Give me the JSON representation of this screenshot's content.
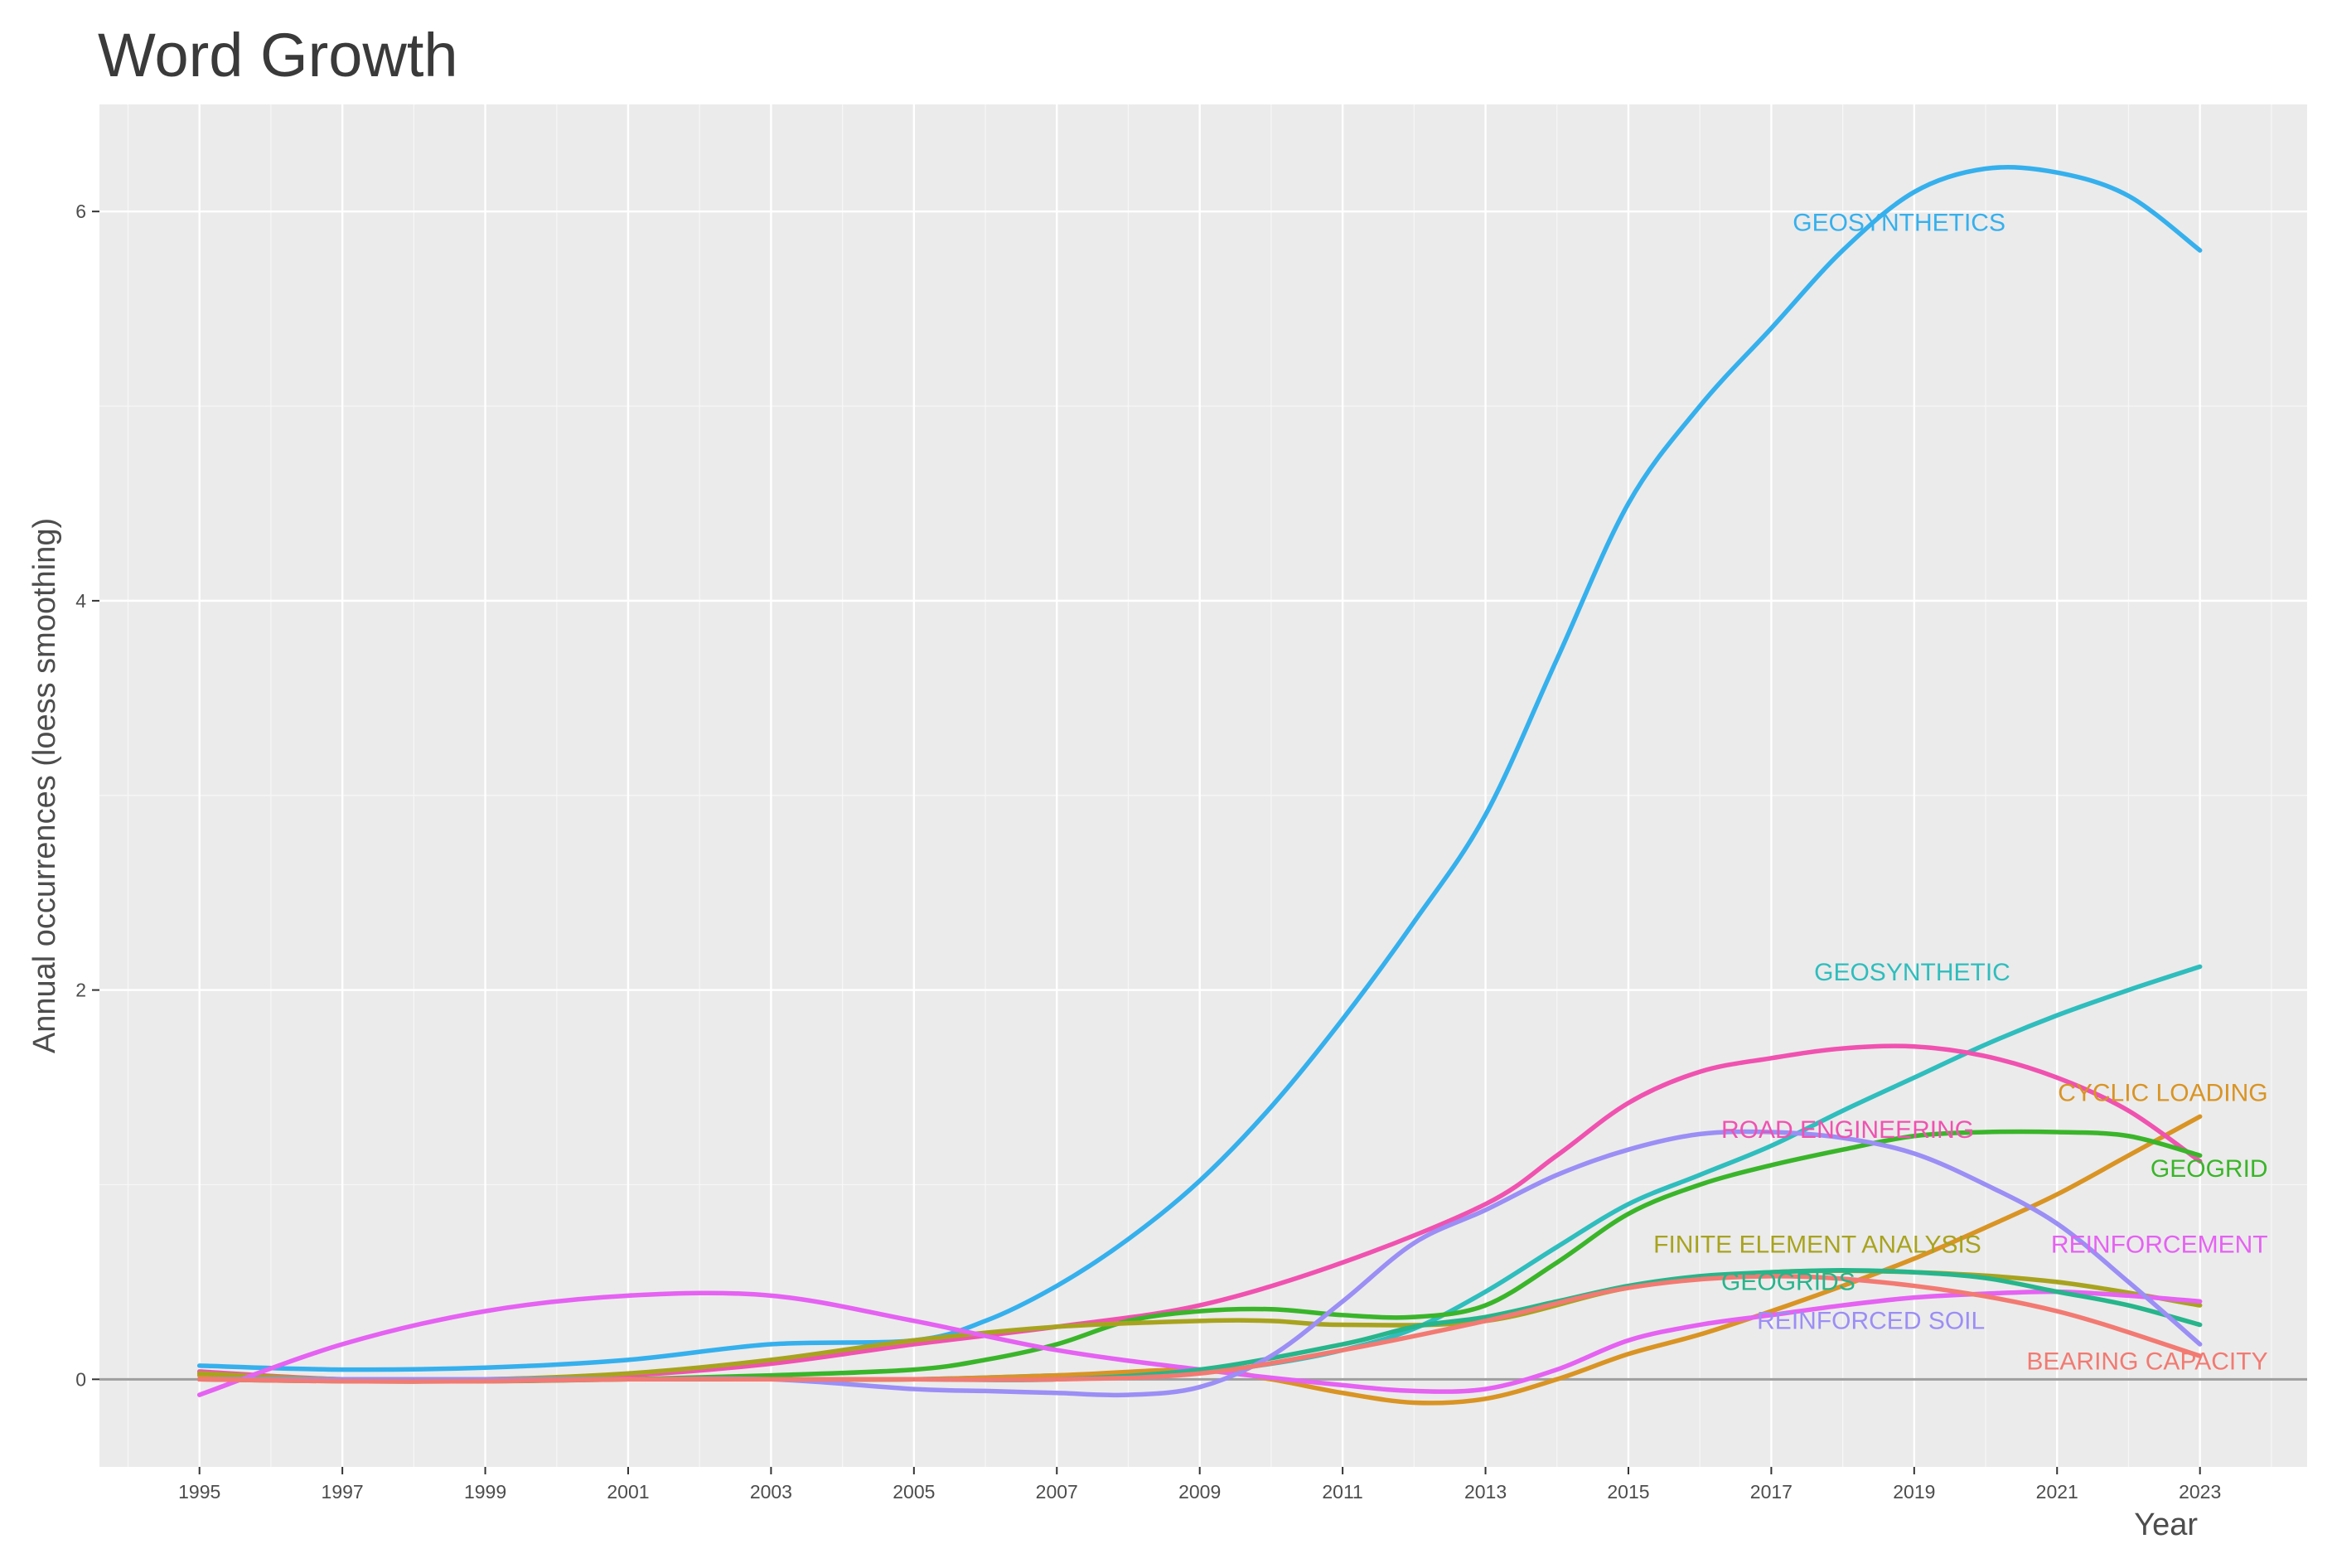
{
  "chart_data": {
    "type": "line",
    "title": "Word Growth",
    "xlabel": "Year",
    "ylabel": "Annual occurrences (loess smoothing)",
    "xlim": [
      1993.6,
      2024.5
    ],
    "ylim": [
      -0.45,
      6.55
    ],
    "x_ticks": [
      1995,
      1997,
      1999,
      2001,
      2003,
      2005,
      2007,
      2009,
      2011,
      2013,
      2015,
      2017,
      2019,
      2021,
      2023
    ],
    "x_tick_labels": [
      "1995",
      "1997",
      "1999",
      "2001",
      "2003",
      "2005",
      "2007",
      "2009",
      "2011",
      "2013",
      "2015",
      "2017",
      "2019",
      "2021",
      "2023"
    ],
    "y_ticks": [
      0,
      2,
      4,
      6
    ],
    "y_tick_labels": [
      "0",
      "2",
      "4",
      "6"
    ],
    "grid": true,
    "background": "#ebebeb",
    "zero_line": 0,
    "series": [
      {
        "name": "GEOSYNTHETICS",
        "color": "#35b0ed",
        "label": {
          "x": 2017.3,
          "y": 5.9,
          "anchor": "start"
        },
        "x": [
          1995,
          1997,
          1999,
          2001,
          2003,
          2005,
          2006,
          2007,
          2008,
          2009,
          2010,
          2011,
          2012,
          2013,
          2014,
          2015,
          2016,
          2017,
          2018,
          2019,
          2020,
          2021,
          2022,
          2023
        ],
        "y": [
          0.07,
          0.05,
          0.06,
          0.1,
          0.18,
          0.2,
          0.3,
          0.48,
          0.72,
          1.02,
          1.4,
          1.85,
          2.35,
          2.9,
          3.7,
          4.5,
          5.0,
          5.4,
          5.8,
          6.1,
          6.22,
          6.2,
          6.08,
          5.8
        ]
      },
      {
        "name": "GEOSYNTHETIC",
        "color": "#2fbdbd",
        "label": {
          "x": 2017.6,
          "y": 2.05,
          "anchor": "start"
        },
        "x": [
          1995,
          1997,
          1999,
          2001,
          2003,
          2005,
          2007,
          2009,
          2010,
          2011,
          2012,
          2013,
          2014,
          2015,
          2016,
          2017,
          2018,
          2019,
          2020,
          2021,
          2022,
          2023
        ],
        "y": [
          0.02,
          0.0,
          0.0,
          0.0,
          0.0,
          0.0,
          0.02,
          0.04,
          0.08,
          0.15,
          0.26,
          0.45,
          0.68,
          0.9,
          1.05,
          1.2,
          1.38,
          1.55,
          1.72,
          1.87,
          2.0,
          2.12
        ]
      },
      {
        "name": "CYCLIC LOADING",
        "color": "#d99424",
        "label": {
          "x": 2023.95,
          "y": 1.43,
          "anchor": "end"
        },
        "x": [
          1995,
          1997,
          1999,
          2001,
          2003,
          2005,
          2007,
          2009,
          2010,
          2011,
          2012,
          2013,
          2014,
          2015,
          2016,
          2017,
          2018,
          2019,
          2020,
          2021,
          2022,
          2023
        ],
        "y": [
          0.02,
          0.0,
          0.0,
          0.0,
          0.0,
          0.0,
          0.02,
          0.05,
          0.0,
          -0.07,
          -0.12,
          -0.1,
          0.0,
          0.13,
          0.23,
          0.35,
          0.48,
          0.62,
          0.78,
          0.95,
          1.15,
          1.35
        ]
      },
      {
        "name": "ROAD ENGINEERING",
        "color": "#f052b0",
        "label": {
          "x": 2016.3,
          "y": 1.24,
          "anchor": "start"
        },
        "x": [
          1995,
          1997,
          1999,
          2001,
          2003,
          2005,
          2007,
          2009,
          2011,
          2013,
          2014,
          2015,
          2016,
          2017,
          2018,
          2019,
          2020,
          2021,
          2022,
          2023
        ],
        "y": [
          0.04,
          0.0,
          0.0,
          0.02,
          0.08,
          0.18,
          0.27,
          0.38,
          0.6,
          0.9,
          1.15,
          1.42,
          1.58,
          1.65,
          1.7,
          1.71,
          1.66,
          1.55,
          1.38,
          1.12
        ]
      },
      {
        "name": "GEOGRID",
        "color": "#3ab52a",
        "label": {
          "x": 2023.95,
          "y": 1.04,
          "anchor": "end"
        },
        "x": [
          1995,
          1997,
          1999,
          2001,
          2003,
          2005,
          2006,
          2007,
          2008,
          2009,
          2010,
          2011,
          2012,
          2013,
          2014,
          2015,
          2016,
          2017,
          2018,
          2019,
          2020,
          2021,
          2022,
          2023
        ],
        "y": [
          0.0,
          -0.01,
          -0.01,
          0.0,
          0.02,
          0.05,
          0.1,
          0.18,
          0.3,
          0.35,
          0.36,
          0.33,
          0.32,
          0.38,
          0.6,
          0.85,
          1.0,
          1.1,
          1.18,
          1.25,
          1.27,
          1.27,
          1.25,
          1.15
        ]
      },
      {
        "name": "FINITE ELEMENT ANALYSIS",
        "color": "#a8a31f",
        "label": {
          "x": 2015.35,
          "y": 0.65,
          "anchor": "start"
        },
        "x": [
          1995,
          1997,
          1999,
          2001,
          2003,
          2005,
          2007,
          2009,
          2010,
          2011,
          2013,
          2015,
          2017,
          2019,
          2021,
          2023
        ],
        "y": [
          0.03,
          0.0,
          0.0,
          0.03,
          0.1,
          0.2,
          0.27,
          0.3,
          0.3,
          0.28,
          0.3,
          0.47,
          0.55,
          0.55,
          0.5,
          0.38
        ]
      },
      {
        "name": "REINFORCEMENT",
        "color": "#e562f2",
        "label": {
          "x": 2023.95,
          "y": 0.65,
          "anchor": "end"
        },
        "x": [
          1995,
          1997,
          1999,
          2001,
          2003,
          2005,
          2007,
          2009,
          2011,
          2012,
          2013,
          2014,
          2015,
          2016,
          2017,
          2018,
          2019,
          2020,
          2021,
          2022,
          2023
        ],
        "y": [
          -0.08,
          0.18,
          0.35,
          0.43,
          0.43,
          0.3,
          0.15,
          0.05,
          -0.03,
          -0.06,
          -0.05,
          0.05,
          0.2,
          0.28,
          0.33,
          0.38,
          0.42,
          0.44,
          0.45,
          0.43,
          0.4
        ]
      },
      {
        "name": "GEOGRIDS",
        "color": "#27b58b",
        "label": {
          "x": 2016.3,
          "y": 0.46,
          "anchor": "start"
        },
        "x": [
          1995,
          1997,
          1999,
          2001,
          2003,
          2005,
          2007,
          2009,
          2011,
          2012,
          2013,
          2014,
          2015,
          2016,
          2017,
          2018,
          2019,
          2020,
          2021,
          2022,
          2023
        ],
        "y": [
          0.0,
          0.0,
          0.0,
          0.0,
          0.0,
          0.0,
          0.0,
          0.05,
          0.18,
          0.27,
          0.32,
          0.4,
          0.48,
          0.53,
          0.55,
          0.56,
          0.55,
          0.52,
          0.45,
          0.38,
          0.28
        ]
      },
      {
        "name": "REINFORCED SOIL",
        "color": "#9b8ef5",
        "label": {
          "x": 2016.8,
          "y": 0.26,
          "anchor": "start"
        },
        "x": [
          1995,
          1997,
          1999,
          2001,
          2003,
          2005,
          2006,
          2007,
          2008,
          2009,
          2010,
          2011,
          2012,
          2013,
          2014,
          2015,
          2016,
          2017,
          2018,
          2019,
          2020,
          2021,
          2022,
          2023
        ],
        "y": [
          0.0,
          0.0,
          0.0,
          0.0,
          0.0,
          -0.05,
          -0.06,
          -0.07,
          -0.08,
          -0.04,
          0.12,
          0.4,
          0.7,
          0.87,
          1.05,
          1.18,
          1.26,
          1.27,
          1.24,
          1.16,
          1.0,
          0.8,
          0.5,
          0.18
        ]
      },
      {
        "name": "BEARING CAPACITY",
        "color": "#f27a72",
        "label": {
          "x": 2023.95,
          "y": 0.05,
          "anchor": "end"
        },
        "x": [
          1995,
          1997,
          1999,
          2001,
          2003,
          2005,
          2007,
          2009,
          2011,
          2013,
          2015,
          2017,
          2019,
          2021,
          2023
        ],
        "y": [
          0.0,
          -0.01,
          -0.01,
          0.0,
          0.0,
          0.0,
          0.0,
          0.03,
          0.15,
          0.3,
          0.47,
          0.53,
          0.48,
          0.35,
          0.12
        ]
      }
    ]
  }
}
